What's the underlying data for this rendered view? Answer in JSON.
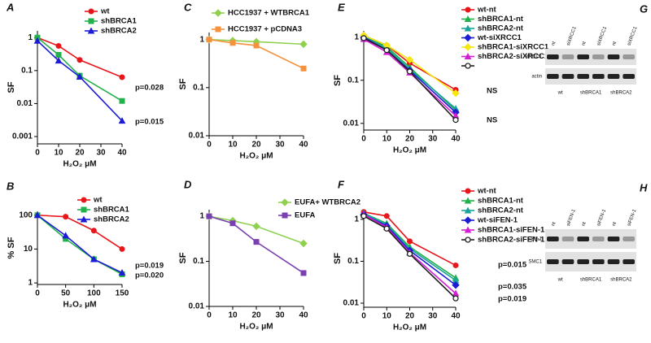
{
  "chart_data": [
    {
      "type": "line",
      "label": "A",
      "xlabel": "H₂O₂ μM",
      "ylabel": "SF",
      "log_y": true,
      "x": [
        0,
        10,
        20,
        40
      ],
      "xlim": [
        0,
        40
      ],
      "xticks": [
        0,
        10,
        20,
        30,
        40
      ],
      "ylim": [
        0.0006,
        1.6
      ],
      "yticks": [
        0.001,
        0.01,
        0.1,
        1
      ],
      "series": [
        {
          "name": "wt",
          "color": "#e8161b",
          "marker": "circle",
          "values": [
            1,
            0.56,
            0.21,
            0.063
          ]
        },
        {
          "name": "shBRCA1",
          "color": "#22b14c",
          "marker": "square",
          "values": [
            1,
            0.3,
            0.07,
            0.012
          ]
        },
        {
          "name": "shBRCA2",
          "color": "#1c1cd6",
          "marker": "triangle",
          "values": [
            0.8,
            0.2,
            0.065,
            0.003
          ]
        }
      ],
      "annotations": [
        "p=0.028",
        "p=0.015"
      ]
    },
    {
      "type": "line",
      "label": "B",
      "xlabel": "H₂O₂ μM",
      "ylabel": "% SF",
      "log_y": true,
      "x": [
        0,
        50,
        100,
        150
      ],
      "xlim": [
        0,
        150
      ],
      "xticks": [
        0,
        50,
        100,
        150
      ],
      "ylim": [
        0.9,
        130
      ],
      "yticks": [
        1,
        10,
        100
      ],
      "series": [
        {
          "name": "wt",
          "color": "#e8161b",
          "marker": "circle",
          "values": [
            100,
            90,
            35,
            10
          ]
        },
        {
          "name": "shBRCA1",
          "color": "#22b14c",
          "marker": "square",
          "values": [
            100,
            20,
            5,
            1.8
          ]
        },
        {
          "name": "shBRCA2",
          "color": "#1c1cd6",
          "marker": "triangle",
          "values": [
            100,
            25,
            5,
            2
          ]
        }
      ],
      "annotations": [
        "p=0.019",
        "p=0.020"
      ]
    },
    {
      "type": "line",
      "label": "C",
      "xlabel": "H₂O₂ μM",
      "ylabel": "SF",
      "log_y": true,
      "x": [
        0,
        10,
        20,
        40
      ],
      "xlim": [
        0,
        40
      ],
      "xticks": [
        0,
        10,
        20,
        30,
        40
      ],
      "ylim": [
        0.01,
        1.4
      ],
      "yticks": [
        0.01,
        0.1,
        1
      ],
      "series": [
        {
          "name": "HCC1937 + WTBRCA1",
          "color": "#8fd14f",
          "marker": "diamond",
          "values": [
            1,
            0.95,
            0.9,
            0.8
          ]
        },
        {
          "name": "HCC1937 + pCDNA3",
          "color": "#f4923d",
          "marker": "square",
          "values": [
            1,
            0.85,
            0.75,
            0.25
          ]
        }
      ],
      "annotations": []
    },
    {
      "type": "line",
      "label": "D",
      "xlabel": "H₂O₂ μM",
      "ylabel": "SF",
      "log_y": true,
      "x": [
        0,
        10,
        20,
        40
      ],
      "xlim": [
        0,
        40
      ],
      "xticks": [
        0,
        10,
        20,
        30,
        40
      ],
      "ylim": [
        0.01,
        1.4
      ],
      "yticks": [
        0.01,
        0.1,
        1
      ],
      "series": [
        {
          "name": "EUFA+ WTBRCA2",
          "color": "#8fd14f",
          "marker": "diamond",
          "values": [
            1,
            0.8,
            0.6,
            0.25
          ]
        },
        {
          "name": "EUFA",
          "color": "#7a3fb0",
          "marker": "square",
          "values": [
            1,
            0.7,
            0.27,
            0.055
          ]
        }
      ],
      "annotations": []
    },
    {
      "type": "line",
      "label": "E",
      "xlabel": "H₂O₂ μM",
      "ylabel": "SF",
      "log_y": true,
      "x": [
        0,
        10,
        20,
        40
      ],
      "xlim": [
        0,
        40
      ],
      "xticks": [
        0,
        10,
        20,
        30,
        40
      ],
      "ylim": [
        0.007,
        1.4
      ],
      "yticks": [
        0.01,
        0.1,
        1
      ],
      "series": [
        {
          "name": "wt-nt",
          "color": "#e8161b",
          "marker": "circle",
          "values": [
            1.1,
            0.65,
            0.25,
            0.06
          ]
        },
        {
          "name": "shBRCA1-nt",
          "color": "#22b14c",
          "marker": "triangle",
          "values": [
            1.05,
            0.6,
            0.2,
            0.02
          ]
        },
        {
          "name": "shBRCA2-nt",
          "color": "#1aa39a",
          "marker": "triangle",
          "values": [
            1,
            0.55,
            0.18,
            0.022
          ]
        },
        {
          "name": "wt-siXRCC1",
          "color": "#1c1cd6",
          "marker": "diamond",
          "values": [
            1,
            0.5,
            0.17,
            0.018
          ]
        },
        {
          "name": "shBRCA1-siXRCC1",
          "color": "#f5e614",
          "marker": "diamond",
          "values": [
            1.1,
            0.65,
            0.3,
            0.05
          ]
        },
        {
          "name": "shBRCA2-siXRCC1",
          "color": "#d41ed4",
          "marker": "triangle",
          "values": [
            0.9,
            0.45,
            0.15,
            0.015
          ]
        },
        {
          "name": null,
          "color": "#222222",
          "marker": "open-circle",
          "values": [
            0.95,
            0.5,
            0.16,
            0.012
          ]
        }
      ],
      "annotations": [
        "NS",
        "NS"
      ]
    },
    {
      "type": "line",
      "label": "F",
      "xlabel": "H₂O₂ μM",
      "ylabel": "SF",
      "log_y": true,
      "x": [
        0,
        10,
        20,
        40
      ],
      "xlim": [
        0,
        40
      ],
      "xticks": [
        0,
        10,
        20,
        30,
        40
      ],
      "ylim": [
        0.008,
        1.7
      ],
      "yticks": [
        0.01,
        0.1,
        1
      ],
      "series": [
        {
          "name": "wt-nt",
          "color": "#e8161b",
          "marker": "circle",
          "values": [
            1.5,
            1.2,
            0.3,
            0.08
          ]
        },
        {
          "name": "shBRCA1-nt",
          "color": "#22b14c",
          "marker": "triangle",
          "values": [
            1.4,
            0.8,
            0.22,
            0.04
          ]
        },
        {
          "name": "shBRCA2-nt",
          "color": "#1aa39a",
          "marker": "triangle",
          "values": [
            1.4,
            0.75,
            0.2,
            0.035
          ]
        },
        {
          "name": "wt-siFEN-1",
          "color": "#1c1cd6",
          "marker": "diamond",
          "values": [
            1.3,
            0.7,
            0.18,
            0.027
          ]
        },
        {
          "name": "shBRCA1-siFEN-1",
          "color": "#d41ed4",
          "marker": "triangle",
          "values": [
            1.3,
            0.65,
            0.16,
            0.017
          ]
        },
        {
          "name": "shBRCA2-siFEN-1",
          "color": "#222222",
          "marker": "open-circle",
          "values": [
            1.2,
            0.6,
            0.15,
            0.013
          ]
        }
      ],
      "annotations": [
        "p=0.015",
        "p=0.035",
        "p=0.019"
      ]
    }
  ],
  "blots": [
    {
      "label": "G",
      "lanes": [
        "nt",
        "siXRCC1",
        "nt",
        "siXRCC1",
        "nt",
        "siXRCC1"
      ],
      "rows": [
        "XRCC1",
        "actin"
      ],
      "groups": [
        "wt",
        "shBRCA1",
        "shBRCA2"
      ]
    },
    {
      "label": "H",
      "lanes": [
        "nt",
        "siFEN-1",
        "nt",
        "siFEN-1",
        "nt",
        "siFEN-1"
      ],
      "rows": [
        "FEN-1",
        "SMC1"
      ],
      "groups": [
        "wt",
        "shBRCA1",
        "shBRCA2"
      ]
    }
  ]
}
